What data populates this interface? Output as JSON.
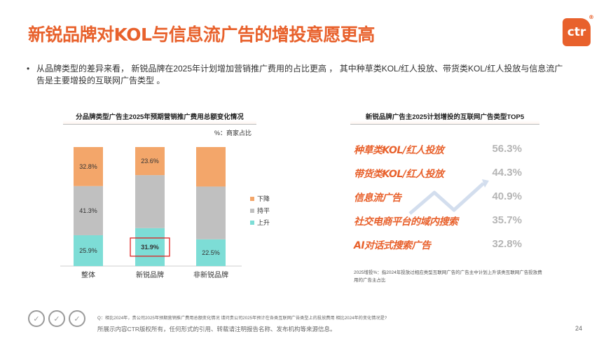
{
  "header": {
    "title": "新锐品牌对KOL与信息流广告的增投意愿更高",
    "logo_text": "ctr",
    "logo_mark": "®"
  },
  "bullet": {
    "text": "从品牌类型的差异来看， 新锐品牌在2025年计划增加营销推广费用的占比更高 ， 其中种草类KOL/红人投放、带货类KOL/红人投放与信息流广告是主要增投的互联网广告类型 。"
  },
  "chart_data": [
    {
      "type": "bar",
      "stacked": true,
      "title": "分品牌类型广告主2025年预期营销推广费用总额变化情况",
      "unit_note": "%：商家占比",
      "categories": [
        "整体",
        "新锐品牌",
        "非新锐品牌"
      ],
      "series": [
        {
          "name": "上升",
          "color": "#7dddd6",
          "values": [
            25.9,
            31.9,
            22.5
          ],
          "labels": [
            "25.9%",
            "31.9%",
            "22.5%"
          ]
        },
        {
          "name": "持平",
          "color": "#c0c0c0",
          "values": [
            41.3,
            44.5,
            44.3
          ],
          "labels": [
            "41.3%",
            "",
            ""
          ]
        },
        {
          "name": "下降",
          "color": "#f3a66a",
          "values": [
            32.8,
            23.6,
            33.2
          ],
          "labels": [
            "32.8%",
            "23.6%",
            ""
          ]
        }
      ],
      "highlight": {
        "category": "新锐品牌",
        "series": "上升",
        "color": "#e02020"
      },
      "legend": [
        "下降",
        "持平",
        "上升"
      ],
      "legend_position": "right",
      "ylim": [
        0,
        100
      ]
    },
    {
      "type": "table",
      "title": "新锐品牌广告主2025计划增投的互联网广告类型TOP5",
      "rows": [
        {
          "label": "种草类KOL/红人投放",
          "value": "56.3%"
        },
        {
          "label": "带货类KOL/红人投放",
          "value": "44.3%"
        },
        {
          "label": "信息流广告",
          "value": "40.9%"
        },
        {
          "label": "社交电商平台的域内搜索",
          "value": "35.7%"
        },
        {
          "label": "AI对话式搜索广告",
          "value": "32.8%"
        }
      ],
      "note": "2025增投%：指2024年投放过相应类型互联网广告的广告主中计划上升该类互联网广告投放费用的广告主占比"
    }
  ],
  "footer": {
    "footnote": "Q：相比2024年，贵公司2025年预期营销推广费用总额变化情况  请问贵公司2025年预计在各类互联网广告类型上的投放费用 相比2024年的变化情况是?",
    "copyright": "所展示内容CTR版权所有，任何形式的引用、转载请注明报告名称、发布机构等来源信息。",
    "page_number": "24",
    "badges": [
      "✓",
      "✓",
      "✓"
    ]
  },
  "colors": {
    "accent": "#e8612c",
    "value_gray": "#b5b5b5"
  }
}
